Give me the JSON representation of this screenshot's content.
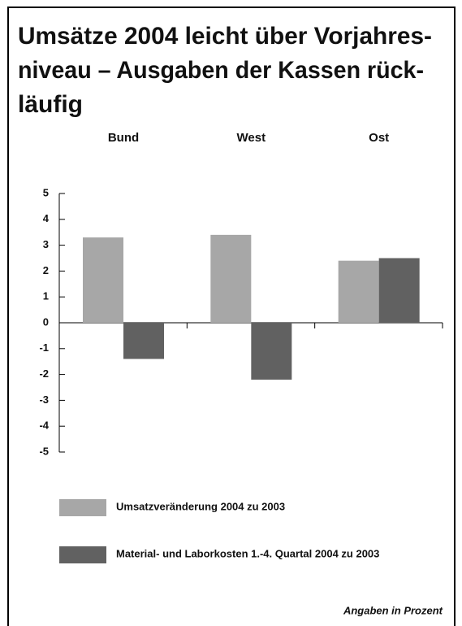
{
  "chart_data": {
    "type": "bar",
    "title": [
      "Umsätze 2004 leicht über Vorjahres-",
      "niveau – Ausgaben der Kassen rück-",
      "läufig"
    ],
    "categories": [
      "Bund",
      "West",
      "Ost"
    ],
    "series": [
      {
        "name": "Umsatzveränderung 2004 zu 2003",
        "color": "#a7a7a7",
        "values": [
          3.3,
          3.4,
          2.4
        ]
      },
      {
        "name": "Material- und Laborkosten 1.-4. Quartal 2004 zu 2003",
        "color": "#616161",
        "values": [
          -1.4,
          -2.2,
          2.5
        ]
      }
    ],
    "ylim": [
      -5,
      5
    ],
    "yticks": [
      -5,
      -4,
      -3,
      -2,
      -1,
      0,
      1,
      2,
      3,
      4,
      5
    ],
    "note": "Angaben in Prozent"
  }
}
